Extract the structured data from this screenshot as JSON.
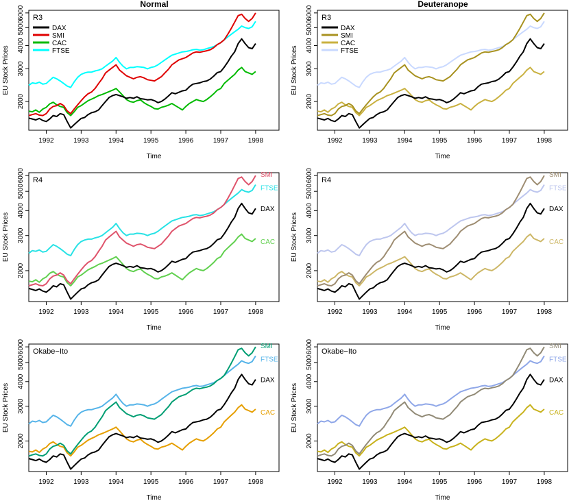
{
  "column_titles": [
    "Normal",
    "Deuteranope"
  ],
  "chart_data": [
    {
      "type": "line",
      "title": "Normal",
      "palette_label": "R3",
      "legend_style": "box-top-left",
      "xlabel": "Time",
      "ylabel": "EU Stock Prices",
      "xlim": [
        1991.5,
        1998.67
      ],
      "ylim": [
        1400,
        6200
      ],
      "ylog": true,
      "x_ticks": [
        1992,
        1993,
        1994,
        1995,
        1996,
        1997,
        1998
      ],
      "y_ticks": [
        2000,
        3000,
        4000,
        5000,
        6000
      ],
      "series": [
        {
          "name": "DAX",
          "color": "#000000"
        },
        {
          "name": "SMI",
          "color": "#DF0000"
        },
        {
          "name": "CAC",
          "color": "#00BA00"
        },
        {
          "name": "FTSE",
          "color": "#00FFFF"
        }
      ]
    },
    {
      "type": "line",
      "title": "Deuteranope",
      "palette_label": "R3",
      "legend_style": "box-top-left",
      "xlabel": "Time",
      "ylabel": "EU Stock Prices",
      "xlim": [
        1991.5,
        1998.67
      ],
      "ylim": [
        1400,
        6200
      ],
      "ylog": true,
      "x_ticks": [
        1992,
        1993,
        1994,
        1995,
        1996,
        1997,
        1998
      ],
      "y_ticks": [
        2000,
        3000,
        4000,
        5000,
        6000
      ],
      "series": [
        {
          "name": "DAX",
          "color": "#000000"
        },
        {
          "name": "SMI",
          "color": "#A89220"
        },
        {
          "name": "CAC",
          "color": "#C9B140"
        },
        {
          "name": "FTSE",
          "color": "#C9D9FF"
        }
      ]
    },
    {
      "type": "line",
      "title": "",
      "palette_label": "R4",
      "legend_style": "end-labels",
      "xlabel": "Time",
      "ylabel": "EU Stock Prices",
      "xlim": [
        1991.5,
        1998.67
      ],
      "ylim": [
        1400,
        6200
      ],
      "ylog": true,
      "x_ticks": [
        1992,
        1993,
        1994,
        1995,
        1996,
        1997,
        1998
      ],
      "y_ticks": [
        2000,
        3000,
        4000,
        5000,
        6000
      ],
      "series": [
        {
          "name": "DAX",
          "color": "#000000"
        },
        {
          "name": "SMI",
          "color": "#DF536B"
        },
        {
          "name": "CAC",
          "color": "#61D04F"
        },
        {
          "name": "FTSE",
          "color": "#28E2E5"
        }
      ]
    },
    {
      "type": "line",
      "title": "",
      "palette_label": "R4",
      "legend_style": "end-labels",
      "xlabel": "Time",
      "ylabel": "EU Stock Prices",
      "xlim": [
        1991.5,
        1998.67
      ],
      "ylim": [
        1400,
        6200
      ],
      "ylog": true,
      "x_ticks": [
        1992,
        1993,
        1994,
        1995,
        1996,
        1997,
        1998
      ],
      "y_ticks": [
        2000,
        3000,
        4000,
        5000,
        6000
      ],
      "series": [
        {
          "name": "DAX",
          "color": "#000000"
        },
        {
          "name": "SMI",
          "color": "#9E8D72"
        },
        {
          "name": "CAC",
          "color": "#CDB767"
        },
        {
          "name": "FTSE",
          "color": "#BDC6EE"
        }
      ]
    },
    {
      "type": "line",
      "title": "",
      "palette_label": "Okabe−Ito",
      "legend_style": "end-labels",
      "xlabel": "Time",
      "ylabel": "EU Stock Prices",
      "xlim": [
        1991.5,
        1998.67
      ],
      "ylim": [
        1400,
        6200
      ],
      "ylog": true,
      "x_ticks": [
        1992,
        1993,
        1994,
        1995,
        1996,
        1997,
        1998
      ],
      "y_ticks": [
        2000,
        3000,
        4000,
        5000,
        6000
      ],
      "series": [
        {
          "name": "DAX",
          "color": "#000000"
        },
        {
          "name": "SMI",
          "color": "#009E73"
        },
        {
          "name": "CAC",
          "color": "#E69F00"
        },
        {
          "name": "FTSE",
          "color": "#56B4E9"
        }
      ]
    },
    {
      "type": "line",
      "title": "",
      "palette_label": "Okabe−Ito",
      "legend_style": "end-labels",
      "xlabel": "Time",
      "ylabel": "EU Stock Prices",
      "xlim": [
        1991.5,
        1998.67
      ],
      "ylim": [
        1400,
        6200
      ],
      "ylog": true,
      "x_ticks": [
        1992,
        1993,
        1994,
        1995,
        1996,
        1997,
        1998
      ],
      "y_ticks": [
        2000,
        3000,
        4000,
        5000,
        6000
      ],
      "series": [
        {
          "name": "DAX",
          "color": "#000000"
        },
        {
          "name": "SMI",
          "color": "#918A76"
        },
        {
          "name": "CAC",
          "color": "#C8B21C"
        },
        {
          "name": "FTSE",
          "color": "#8FA7E8"
        }
      ]
    }
  ],
  "series_x": [
    1991.5,
    1991.6,
    1991.7,
    1991.8,
    1991.9,
    1992.0,
    1992.1,
    1992.2,
    1992.3,
    1992.4,
    1992.5,
    1992.6,
    1992.7,
    1992.8,
    1992.9,
    1993.0,
    1993.1,
    1993.2,
    1993.3,
    1993.4,
    1993.5,
    1993.6,
    1993.7,
    1993.8,
    1993.9,
    1994.0,
    1994.1,
    1994.2,
    1994.3,
    1994.4,
    1994.5,
    1994.6,
    1994.7,
    1994.8,
    1994.9,
    1995.0,
    1995.1,
    1995.2,
    1995.3,
    1995.4,
    1995.5,
    1995.6,
    1995.7,
    1995.8,
    1995.9,
    1996.0,
    1996.1,
    1996.2,
    1996.3,
    1996.4,
    1996.5,
    1996.6,
    1996.7,
    1996.8,
    1996.9,
    1997.0,
    1997.1,
    1997.2,
    1997.3,
    1997.4,
    1997.5,
    1997.6,
    1997.7,
    1997.8,
    1997.9,
    1998.0
  ],
  "series_y": {
    "DAX": [
      1628,
      1610,
      1590,
      1620,
      1580,
      1560,
      1610,
      1680,
      1660,
      1720,
      1700,
      1560,
      1440,
      1500,
      1560,
      1620,
      1640,
      1700,
      1740,
      1760,
      1800,
      1900,
      2000,
      2100,
      2150,
      2180,
      2150,
      2120,
      2080,
      2100,
      2080,
      2120,
      2070,
      2060,
      2040,
      2050,
      2020,
      1970,
      2000,
      2060,
      2140,
      2230,
      2200,
      2240,
      2280,
      2300,
      2400,
      2480,
      2500,
      2520,
      2560,
      2580,
      2640,
      2740,
      2860,
      2900,
      3060,
      3260,
      3500,
      3700,
      4100,
      4350,
      4100,
      3900,
      3850,
      4100
    ],
    "SMI": [
      1678,
      1700,
      1720,
      1690,
      1680,
      1720,
      1820,
      1880,
      1900,
      1950,
      1900,
      1780,
      1720,
      1820,
      1920,
      2020,
      2120,
      2200,
      2250,
      2350,
      2500,
      2650,
      2850,
      2950,
      3050,
      3150,
      2950,
      2850,
      2750,
      2700,
      2650,
      2700,
      2720,
      2680,
      2620,
      2600,
      2580,
      2650,
      2720,
      2850,
      2980,
      3150,
      3250,
      3350,
      3400,
      3450,
      3550,
      3650,
      3700,
      3680,
      3720,
      3750,
      3800,
      3900,
      4050,
      4150,
      4300,
      4600,
      4950,
      5350,
      5800,
      5900,
      5600,
      5400,
      5600,
      6000
    ],
    "CAC": [
      1773,
      1760,
      1800,
      1750,
      1820,
      1860,
      1940,
      1980,
      1920,
      1880,
      1860,
      1740,
      1680,
      1760,
      1860,
      1900,
      1960,
      2020,
      2060,
      2100,
      2150,
      2180,
      2220,
      2260,
      2300,
      2350,
      2250,
      2150,
      2050,
      2000,
      1980,
      2020,
      2040,
      1970,
      1920,
      1880,
      1830,
      1820,
      1860,
      1880,
      1910,
      1950,
      1900,
      1850,
      1800,
      1880,
      1950,
      2000,
      2050,
      2020,
      2000,
      2050,
      2120,
      2200,
      2300,
      2350,
      2500,
      2600,
      2700,
      2800,
      2950,
      3050,
      2900,
      2850,
      2800,
      2900
    ],
    "FTSE": [
      2444,
      2520,
      2500,
      2540,
      2480,
      2500,
      2600,
      2700,
      2650,
      2580,
      2500,
      2420,
      2380,
      2550,
      2700,
      2800,
      2850,
      2880,
      2880,
      2920,
      2950,
      3000,
      3100,
      3200,
      3300,
      3450,
      3250,
      3100,
      3000,
      3050,
      3050,
      3080,
      3070,
      3050,
      3000,
      3050,
      3080,
      3150,
      3250,
      3350,
      3450,
      3550,
      3600,
      3650,
      3700,
      3720,
      3750,
      3800,
      3820,
      3780,
      3800,
      3850,
      3900,
      3950,
      4050,
      4150,
      4300,
      4450,
      4600,
      4750,
      4900,
      5100,
      5000,
      4950,
      5050,
      5400
    ]
  }
}
